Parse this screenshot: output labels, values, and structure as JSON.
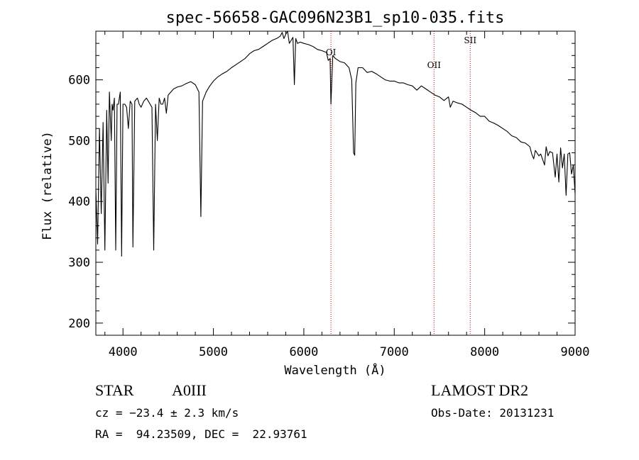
{
  "chart_data": {
    "type": "line",
    "title": "spec-56658-GAC096N23B1_sp10-035.fits",
    "xlabel": "Wavelength (Å)",
    "ylabel": "Flux (relative)",
    "xlim": [
      3700,
      9000
    ],
    "ylim": [
      180,
      680
    ],
    "x_ticks": [
      4000,
      5000,
      6000,
      7000,
      8000,
      9000
    ],
    "y_ticks": [
      200,
      300,
      400,
      500,
      600
    ],
    "grid": false,
    "lines": [
      {
        "label": "OI",
        "x": 6300
      },
      {
        "label": "OII",
        "x": 7440
      },
      {
        "label": "SII",
        "x": 7840
      }
    ],
    "series": [
      {
        "x": [
          3700,
          3720,
          3740,
          3760,
          3780,
          3800,
          3820,
          3835,
          3850,
          3870,
          3880,
          3890,
          3905,
          3920,
          3935,
          3950,
          3970,
          3985,
          4000,
          4020,
          4040,
          4060,
          4080,
          4100,
          4110,
          4130,
          4160,
          4180,
          4200,
          4230,
          4260,
          4280,
          4300,
          4320,
          4340,
          4360,
          4380,
          4400,
          4420,
          4440,
          4460,
          4480,
          4500,
          4530,
          4560,
          4600,
          4650,
          4700,
          4750,
          4800,
          4840,
          4861,
          4880,
          4920,
          4960,
          5000,
          5050,
          5100,
          5150,
          5200,
          5250,
          5300,
          5350,
          5400,
          5450,
          5500,
          5550,
          5600,
          5650,
          5700,
          5740,
          5760,
          5780,
          5800,
          5820,
          5840,
          5860,
          5880,
          5895,
          5910,
          5930,
          5960,
          6000,
          6050,
          6100,
          6150,
          6200,
          6250,
          6270,
          6290,
          6300,
          6320,
          6350,
          6400,
          6450,
          6500,
          6530,
          6550,
          6563,
          6575,
          6600,
          6650,
          6700,
          6750,
          6800,
          6850,
          6900,
          6950,
          7000,
          7050,
          7100,
          7150,
          7200,
          7250,
          7300,
          7350,
          7400,
          7450,
          7500,
          7550,
          7600,
          7620,
          7650,
          7700,
          7750,
          7800,
          7850,
          7900,
          7950,
          8000,
          8050,
          8100,
          8150,
          8200,
          8250,
          8300,
          8350,
          8400,
          8450,
          8500,
          8520,
          8542,
          8560,
          8600,
          8620,
          8662,
          8680,
          8700,
          8720,
          8750,
          8780,
          8800,
          8820,
          8840,
          8860,
          8880,
          8900,
          8920,
          8940,
          8960,
          8980,
          9000
        ],
        "values": [
          420,
          330,
          520,
          380,
          530,
          320,
          550,
          430,
          580,
          500,
          560,
          550,
          570,
          320,
          560,
          560,
          580,
          310,
          560,
          560,
          555,
          520,
          565,
          560,
          325,
          565,
          570,
          560,
          555,
          565,
          570,
          565,
          560,
          555,
          320,
          560,
          500,
          570,
          560,
          560,
          570,
          545,
          575,
          580,
          585,
          588,
          590,
          594,
          597,
          592,
          580,
          375,
          565,
          580,
          590,
          598,
          605,
          610,
          614,
          620,
          625,
          630,
          635,
          643,
          648,
          650,
          655,
          660,
          665,
          668,
          672,
          678,
          668,
          675,
          680,
          660,
          665,
          670,
          592,
          668,
          660,
          662,
          660,
          658,
          655,
          650,
          648,
          645,
          632,
          635,
          560,
          640,
          635,
          630,
          628,
          620,
          600,
          480,
          476,
          595,
          620,
          620,
          612,
          614,
          610,
          605,
          600,
          598,
          598,
          595,
          595,
          592,
          590,
          583,
          590,
          585,
          580,
          575,
          572,
          566,
          572,
          555,
          565,
          562,
          560,
          555,
          550,
          546,
          540,
          540,
          532,
          529,
          525,
          520,
          515,
          508,
          505,
          498,
          496,
          490,
          478,
          470,
          484,
          475,
          478,
          460,
          490,
          475,
          482,
          480,
          440,
          478,
          432,
          488,
          455,
          478,
          410,
          478,
          480,
          445,
          460,
          412
        ]
      }
    ]
  },
  "info": {
    "object_type": "STAR",
    "subclass": "A0III",
    "survey": "LAMOST DR2",
    "cz": "cz = −23.4 ± 2.3 km/s",
    "obs_date": "Obs-Date: 20131231",
    "coords": "RA =  94.23509, DEC =  22.93761"
  }
}
